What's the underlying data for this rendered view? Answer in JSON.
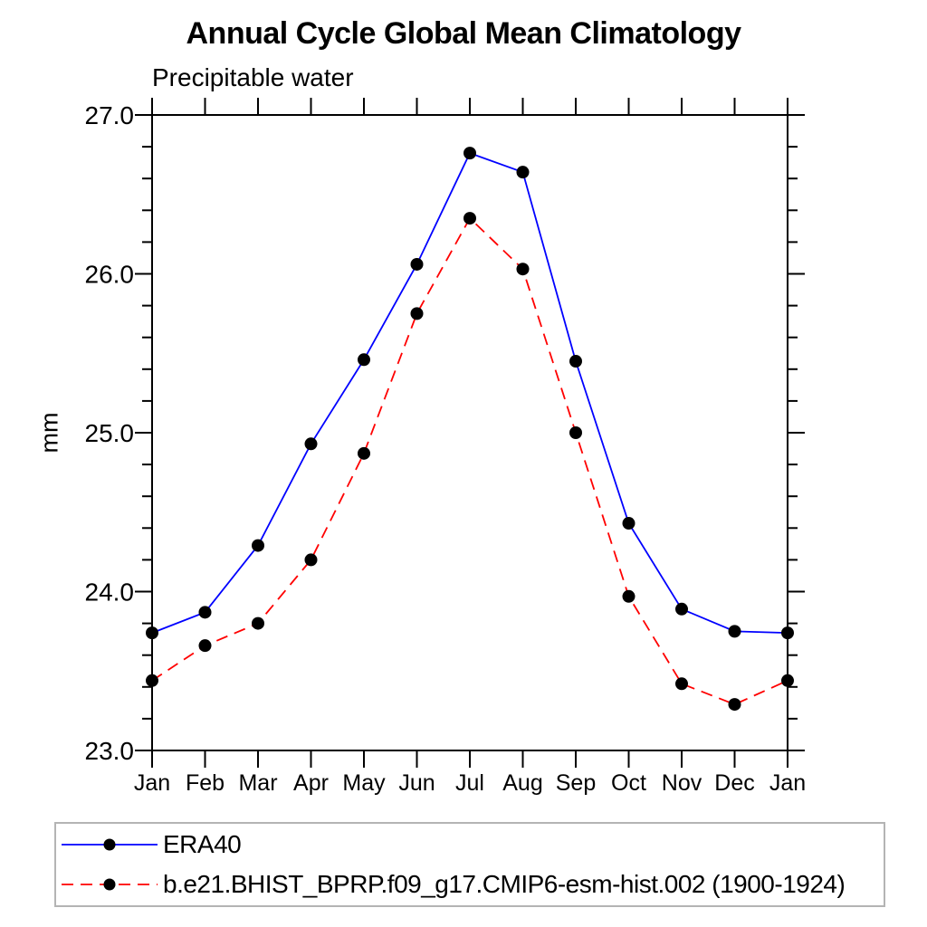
{
  "title": "Annual Cycle Global Mean Climatology",
  "subtitle": "Precipitable water",
  "colors": {
    "axis": "#000000",
    "marker": "#000000",
    "era40_line": "#0000ff",
    "model_line": "#ff0000",
    "legend_border": "#b4b4b4",
    "background": "#ffffff"
  },
  "legend": {
    "items": [
      {
        "label": "ERA40"
      },
      {
        "label": "b.e21.BHIST_BPRP.f09_g17.CMIP6-esm-hist.002 (1900-1924)"
      }
    ]
  },
  "chart_data": {
    "type": "line",
    "title": "Annual Cycle Global Mean Climatology",
    "subtitle": "Precipitable water",
    "ylabel": "mm",
    "xlabel": "",
    "x_categories": [
      "Jan",
      "Feb",
      "Mar",
      "Apr",
      "May",
      "Jun",
      "Jul",
      "Aug",
      "Sep",
      "Oct",
      "Nov",
      "Dec",
      "Jan"
    ],
    "ylim": [
      23.0,
      27.0
    ],
    "yticks": [
      23.0,
      24.0,
      25.0,
      26.0,
      27.0
    ],
    "ytick_labels": [
      "23.0",
      "24.0",
      "25.0",
      "26.0",
      "27.0"
    ],
    "y_minor_tick_interval": 0.2,
    "grid": false,
    "legend_position": "bottom-left-box",
    "series": [
      {
        "name": "ERA40",
        "color": "#0000ff",
        "line_style": "solid",
        "marker": "filled-circle",
        "marker_color": "#000000",
        "values": [
          23.74,
          23.87,
          24.29,
          24.93,
          25.46,
          26.06,
          26.76,
          26.64,
          25.45,
          24.43,
          23.89,
          23.75,
          23.74
        ]
      },
      {
        "name": "b.e21.BHIST_BPRP.f09_g17.CMIP6-esm-hist.002 (1900-1924)",
        "color": "#ff0000",
        "line_style": "dashed",
        "marker": "filled-circle",
        "marker_color": "#000000",
        "values": [
          23.44,
          23.66,
          23.8,
          24.2,
          24.87,
          25.75,
          26.35,
          26.03,
          25.0,
          23.97,
          23.42,
          23.29,
          23.44
        ]
      }
    ]
  }
}
